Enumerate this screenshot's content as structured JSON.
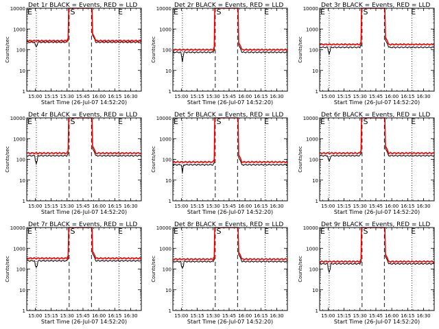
{
  "figure": {
    "layout": {
      "rows": 3,
      "cols": 3
    }
  },
  "chart_data": [
    {
      "type": "line",
      "title": "Det 1r BLACK = Events, RED = LLD",
      "xlabel": "Start Time (26-Jul-07 14:52:20)",
      "ylabel": "Counts/sec",
      "x_ticks": [
        "15:00",
        "15:15",
        "15:30",
        "15:45",
        "16:00",
        "16:15",
        "16:30"
      ],
      "y_ticks": [
        "1",
        "10",
        "100",
        "1000",
        "10000"
      ],
      "y_scale": "log",
      "ylim": [
        1,
        10000
      ],
      "annotations": [
        {
          "text": "E",
          "x": "14:52"
        },
        {
          "text": "S",
          "x": "15:35"
        },
        {
          "text": "E",
          "x": "16:20"
        }
      ],
      "vertical_lines": [
        {
          "x": "15:01",
          "style": "dotted"
        },
        {
          "x": "15:32",
          "style": "dashed"
        },
        {
          "x": "15:53",
          "style": "dashed"
        },
        {
          "x": "16:19",
          "style": "dotted"
        }
      ],
      "series": [
        {
          "name": "Events",
          "color": "#000000",
          "base": 230,
          "dip": 140
        },
        {
          "name": "LLD",
          "color": "#ff0000",
          "base": 270
        }
      ]
    },
    {
      "type": "line",
      "title": "Det 2r BLACK = Events, RED = LLD",
      "xlabel": "Start Time (26-Jul-07 14:52:20)",
      "ylabel": "Counts/sec",
      "x_ticks": [
        "15:00",
        "15:15",
        "15:30",
        "15:45",
        "16:00",
        "16:15",
        "16:30"
      ],
      "y_ticks": [
        "1",
        "10",
        "100",
        "1000",
        "10000"
      ],
      "y_scale": "log",
      "ylim": [
        1,
        10000
      ],
      "annotations": [
        {
          "text": "E",
          "x": "14:52"
        },
        {
          "text": "S",
          "x": "15:35"
        },
        {
          "text": "E",
          "x": "16:20"
        }
      ],
      "vertical_lines": [
        {
          "x": "15:01",
          "style": "dotted"
        },
        {
          "x": "15:32",
          "style": "dashed"
        },
        {
          "x": "15:53",
          "style": "dashed"
        },
        {
          "x": "16:19",
          "style": "dotted"
        }
      ],
      "series": [
        {
          "name": "Events",
          "color": "#000000",
          "base": 75,
          "dip": 25
        },
        {
          "name": "LLD",
          "color": "#ff0000",
          "base": 100
        }
      ]
    },
    {
      "type": "line",
      "title": "Det 3r BLACK = Events, RED = LLD",
      "xlabel": "Start Time (26-Jul-07 14:52:20)",
      "ylabel": "Counts/sec",
      "x_ticks": [
        "15:00",
        "15:15",
        "15:30",
        "15:45",
        "16:00",
        "16:15",
        "16:30"
      ],
      "y_ticks": [
        "1",
        "10",
        "100",
        "1000",
        "10000"
      ],
      "y_scale": "log",
      "ylim": [
        1,
        10000
      ],
      "annotations": [
        {
          "text": "E",
          "x": "14:52"
        },
        {
          "text": "S",
          "x": "15:35"
        },
        {
          "text": "E",
          "x": "16:20"
        }
      ],
      "vertical_lines": [
        {
          "x": "15:01",
          "style": "dotted"
        },
        {
          "x": "15:32",
          "style": "dashed"
        },
        {
          "x": "15:53",
          "style": "dashed"
        },
        {
          "x": "16:19",
          "style": "dotted"
        }
      ],
      "series": [
        {
          "name": "Events",
          "color": "#000000",
          "base": 130,
          "dip": 60
        },
        {
          "name": "LLD",
          "color": "#ff0000",
          "base": 180
        }
      ]
    },
    {
      "type": "line",
      "title": "Det 4r BLACK = Events, RED = LLD",
      "xlabel": "Start Time (26-Jul-07 14:52:20)",
      "ylabel": "Counts/sec",
      "x_ticks": [
        "15:00",
        "15:15",
        "15:30",
        "15:45",
        "16:00",
        "16:15",
        "16:30"
      ],
      "y_ticks": [
        "1",
        "10",
        "100",
        "1000",
        "10000"
      ],
      "y_scale": "log",
      "ylim": [
        1,
        10000
      ],
      "annotations": [
        {
          "text": "E",
          "x": "14:52"
        },
        {
          "text": "S",
          "x": "15:35"
        },
        {
          "text": "E",
          "x": "16:20"
        }
      ],
      "vertical_lines": [
        {
          "x": "15:01",
          "style": "dotted"
        },
        {
          "x": "15:32",
          "style": "dashed"
        },
        {
          "x": "15:53",
          "style": "dashed"
        },
        {
          "x": "16:19",
          "style": "dotted"
        }
      ],
      "series": [
        {
          "name": "Events",
          "color": "#000000",
          "base": 150,
          "dip": 60
        },
        {
          "name": "LLD",
          "color": "#ff0000",
          "base": 200
        }
      ]
    },
    {
      "type": "line",
      "title": "Det 5r BLACK = Events, RED = LLD",
      "xlabel": "Start Time (26-Jul-07 14:52:20)",
      "ylabel": "Counts/sec",
      "x_ticks": [
        "15:00",
        "15:15",
        "15:30",
        "15:45",
        "16:00",
        "16:15",
        "16:30"
      ],
      "y_ticks": [
        "1",
        "10",
        "100",
        "1000",
        "10000"
      ],
      "y_scale": "log",
      "ylim": [
        1,
        10000
      ],
      "annotations": [
        {
          "text": "E",
          "x": "14:52"
        },
        {
          "text": "S",
          "x": "15:35"
        },
        {
          "text": "E",
          "x": "16:20"
        }
      ],
      "vertical_lines": [
        {
          "x": "15:01",
          "style": "dotted"
        },
        {
          "x": "15:32",
          "style": "dashed"
        },
        {
          "x": "15:53",
          "style": "dashed"
        },
        {
          "x": "16:19",
          "style": "dotted"
        }
      ],
      "series": [
        {
          "name": "Events",
          "color": "#000000",
          "base": 55,
          "dip": 22
        },
        {
          "name": "LLD",
          "color": "#ff0000",
          "base": 75
        }
      ]
    },
    {
      "type": "line",
      "title": "Det 6r BLACK = Events, RED = LLD",
      "xlabel": "Start Time (26-Jul-07 14:52:20)",
      "ylabel": "Counts/sec",
      "x_ticks": [
        "15:00",
        "15:15",
        "15:30",
        "15:45",
        "16:00",
        "16:15",
        "16:30"
      ],
      "y_ticks": [
        "1",
        "10",
        "100",
        "1000",
        "10000"
      ],
      "y_scale": "log",
      "ylim": [
        1,
        10000
      ],
      "annotations": [
        {
          "text": "E",
          "x": "14:52"
        },
        {
          "text": "S",
          "x": "15:35"
        },
        {
          "text": "E",
          "x": "16:20"
        }
      ],
      "vertical_lines": [
        {
          "x": "15:01",
          "style": "dotted"
        },
        {
          "x": "15:32",
          "style": "dashed"
        },
        {
          "x": "15:53",
          "style": "dashed"
        },
        {
          "x": "16:19",
          "style": "dotted"
        }
      ],
      "series": [
        {
          "name": "Events",
          "color": "#000000",
          "base": 150,
          "dip": 80
        },
        {
          "name": "LLD",
          "color": "#ff0000",
          "base": 200
        }
      ]
    },
    {
      "type": "line",
      "title": "Det 7r BLACK = Events, RED = LLD",
      "xlabel": "Start Time (26-Jul-07 14:52:20)",
      "ylabel": "Counts/sec",
      "x_ticks": [
        "15:00",
        "15:15",
        "15:30",
        "15:45",
        "16:00",
        "16:15",
        "16:30"
      ],
      "y_ticks": [
        "1",
        "10",
        "100",
        "1000",
        "10000"
      ],
      "y_scale": "log",
      "ylim": [
        1,
        10000
      ],
      "annotations": [
        {
          "text": "E",
          "x": "14:52"
        },
        {
          "text": "S",
          "x": "15:35"
        },
        {
          "text": "E",
          "x": "16:20"
        }
      ],
      "vertical_lines": [
        {
          "x": "15:01",
          "style": "dotted"
        },
        {
          "x": "15:32",
          "style": "dashed"
        },
        {
          "x": "15:53",
          "style": "dashed"
        },
        {
          "x": "16:19",
          "style": "dotted"
        }
      ],
      "series": [
        {
          "name": "Events",
          "color": "#000000",
          "base": 250,
          "dip": 120
        },
        {
          "name": "LLD",
          "color": "#ff0000",
          "base": 330
        }
      ]
    },
    {
      "type": "line",
      "title": "Det 8r BLACK = Events, RED = LLD",
      "xlabel": "Start Time (26-Jul-07 14:52:20)",
      "ylabel": "Counts/sec",
      "x_ticks": [
        "15:00",
        "15:15",
        "15:30",
        "15:45",
        "16:00",
        "16:15",
        "16:30"
      ],
      "y_ticks": [
        "1",
        "10",
        "100",
        "1000",
        "10000"
      ],
      "y_scale": "log",
      "ylim": [
        1,
        10000
      ],
      "annotations": [
        {
          "text": "E",
          "x": "14:52"
        },
        {
          "text": "S",
          "x": "15:35"
        },
        {
          "text": "E",
          "x": "16:20"
        }
      ],
      "vertical_lines": [
        {
          "x": "15:01",
          "style": "dotted"
        },
        {
          "x": "15:32",
          "style": "dashed"
        },
        {
          "x": "15:53",
          "style": "dashed"
        },
        {
          "x": "16:19",
          "style": "dotted"
        }
      ],
      "series": [
        {
          "name": "Events",
          "color": "#000000",
          "base": 230,
          "dip": 110
        },
        {
          "name": "LLD",
          "color": "#ff0000",
          "base": 300
        }
      ]
    },
    {
      "type": "line",
      "title": "Det 9r BLACK = Events, RED = LLD",
      "xlabel": "Start Time (26-Jul-07 14:52:20)",
      "ylabel": "Counts/sec",
      "x_ticks": [
        "15:00",
        "15:15",
        "15:30",
        "15:45",
        "16:00",
        "16:15",
        "16:30"
      ],
      "y_ticks": [
        "1",
        "10",
        "100",
        "1000",
        "10000"
      ],
      "y_scale": "log",
      "ylim": [
        1,
        10000
      ],
      "annotations": [
        {
          "text": "E",
          "x": "14:52"
        },
        {
          "text": "S",
          "x": "15:35"
        },
        {
          "text": "E",
          "x": "16:20"
        }
      ],
      "vertical_lines": [
        {
          "x": "15:01",
          "style": "dotted"
        },
        {
          "x": "15:32",
          "style": "dashed"
        },
        {
          "x": "15:53",
          "style": "dashed"
        },
        {
          "x": "16:19",
          "style": "dotted"
        }
      ],
      "series": [
        {
          "name": "Events",
          "color": "#000000",
          "base": 180,
          "dip": 70
        },
        {
          "name": "LLD",
          "color": "#ff0000",
          "base": 230
        }
      ]
    }
  ]
}
